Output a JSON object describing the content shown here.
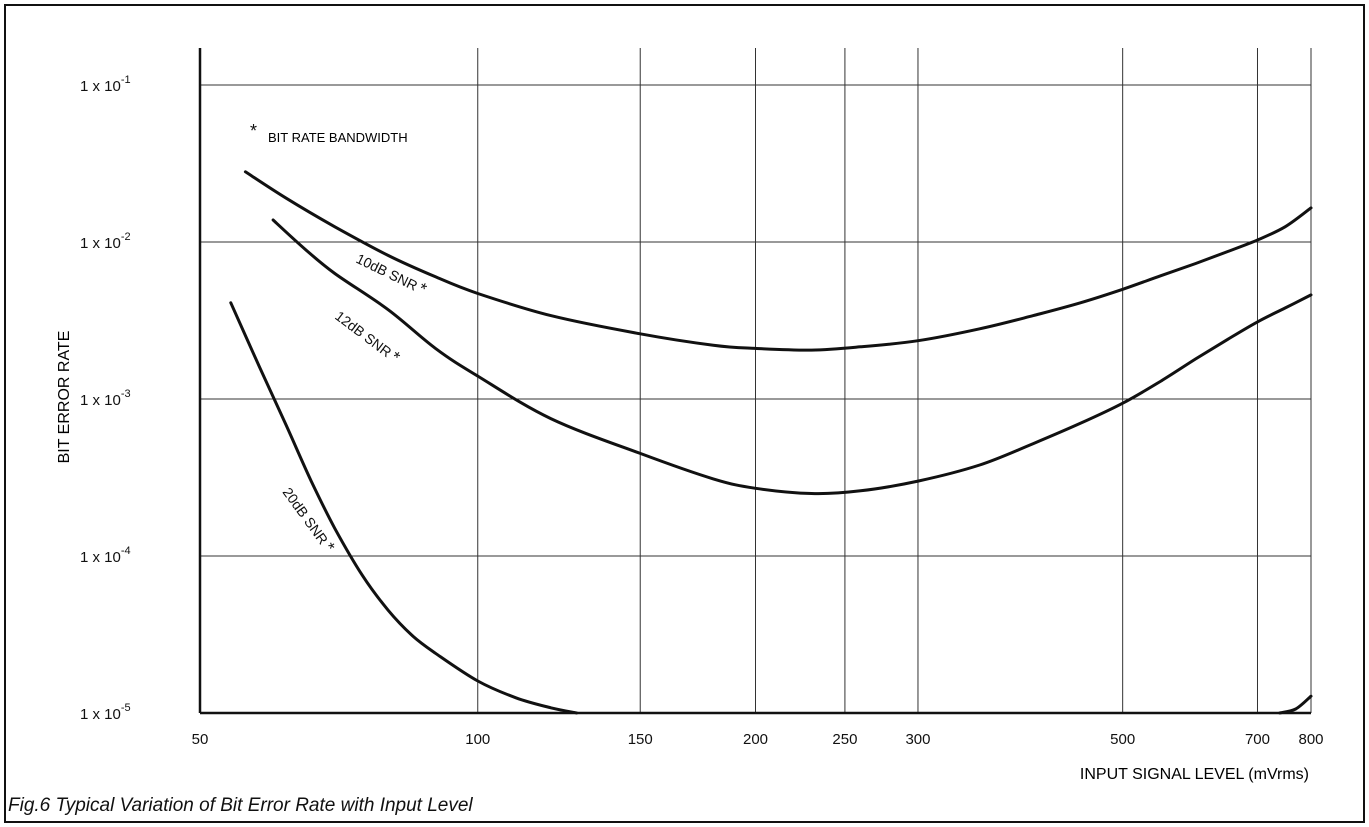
{
  "chart_data": {
    "type": "line",
    "title": "",
    "caption": "Fig.6 Typical Variation of Bit Error Rate with Input Level",
    "xlabel": "INPUT  SIGNAL  LEVEL  (mVrms)",
    "ylabel": "BIT  ERROR  RATE",
    "xscale": "log",
    "yscale": "log",
    "xlim": [
      50,
      800
    ],
    "ylim": [
      1e-05,
      0.1
    ],
    "x_ticks": [
      {
        "v": 50,
        "label": "50"
      },
      {
        "v": 100,
        "label": "100"
      },
      {
        "v": 150,
        "label": "150"
      },
      {
        "v": 200,
        "label": "200"
      },
      {
        "v": 250,
        "label": "250"
      },
      {
        "v": 300,
        "label": "300"
      },
      {
        "v": 500,
        "label": "500"
      },
      {
        "v": 700,
        "label": "700"
      },
      {
        "v": 800,
        "label": "800"
      }
    ],
    "y_ticks": [
      {
        "v": 0.1,
        "base": "1  x  10",
        "exp": "-1"
      },
      {
        "v": 0.01,
        "base": "1  x  10",
        "exp": "-2"
      },
      {
        "v": 0.001,
        "base": "1  x  10",
        "exp": "-3"
      },
      {
        "v": 0.0001,
        "base": "1  x  10",
        "exp": "-4"
      },
      {
        "v": 1e-05,
        "base": "1  x  10",
        "exp": "-5"
      }
    ],
    "grid": true,
    "note": "BIT  RATE  BANDWIDTH",
    "note_marker": "*",
    "series": [
      {
        "name": "10dB  SNR",
        "x": [
          56,
          62,
          70,
          80,
          90,
          100,
          120,
          150,
          180,
          200,
          230,
          260,
          300,
          350,
          400,
          450,
          500,
          550,
          600,
          650,
          700,
          750,
          800
        ],
        "y": [
          0.028,
          0.019,
          0.0125,
          0.0082,
          0.006,
          0.0047,
          0.0034,
          0.0026,
          0.0022,
          0.0021,
          0.00205,
          0.00215,
          0.00235,
          0.0028,
          0.0034,
          0.0041,
          0.005,
          0.0061,
          0.0073,
          0.0087,
          0.0103,
          0.0125,
          0.0165
        ]
      },
      {
        "name": "12dB  SNR",
        "x": [
          60,
          65,
          70,
          80,
          90,
          100,
          120,
          150,
          180,
          200,
          230,
          260,
          300,
          350,
          400,
          450,
          500,
          550,
          600,
          650,
          700,
          750,
          800
        ],
        "y": [
          0.0138,
          0.009,
          0.0063,
          0.0037,
          0.0021,
          0.0014,
          0.00075,
          0.00045,
          0.00031,
          0.00027,
          0.00025,
          0.00026,
          0.0003,
          0.00038,
          0.00052,
          0.0007,
          0.00094,
          0.0013,
          0.0018,
          0.0024,
          0.0031,
          0.0038,
          0.0046
        ]
      },
      {
        "name": "20dB  SNR",
        "x": [
          54,
          58,
          62,
          66,
          70,
          75,
          80,
          85,
          90,
          100,
          110,
          120,
          128
        ],
        "y": [
          0.0041,
          0.0016,
          0.00068,
          0.0003,
          0.00015,
          7.5e-05,
          4.5e-05,
          3.1e-05,
          2.4e-05,
          1.6e-05,
          1.25e-05,
          1.08e-05,
          1e-05
        ]
      },
      {
        "x": [
          740,
          770,
          800
        ],
        "y": [
          1e-05,
          1.06e-05,
          1.28e-05
        ]
      }
    ]
  }
}
